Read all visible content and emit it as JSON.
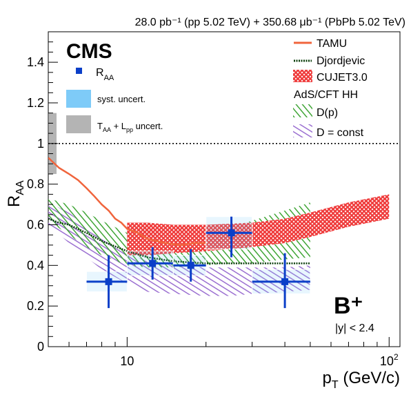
{
  "chart_data": {
    "type": "scatter",
    "header": "28.0 pb⁻¹ (pp 5.02 TeV) + 350.68 μb⁻¹ (PbPb 5.02 TeV)",
    "experiment": "CMS",
    "particle": "B⁺",
    "rapidity_cut": "|y| < 2.4",
    "xlabel": "pT (GeV/c)",
    "ylabel": "RAA",
    "xscale": "log",
    "xlim": [
      5,
      110
    ],
    "ylim": [
      0,
      1.55
    ],
    "x_tick_labels": [
      {
        "value": 10,
        "label": "10"
      },
      {
        "value": 100,
        "label": "10²"
      }
    ],
    "y_ticks": [
      0,
      0.2,
      0.4,
      0.6,
      0.8,
      1,
      1.2,
      1.4
    ],
    "y_tick_labels": [
      "0",
      "0.2",
      "0.4",
      "0.6",
      "0.8",
      "1",
      "1.2",
      "1.4"
    ],
    "reference_line": {
      "y": 1,
      "style": "dotted"
    },
    "legend_left": {
      "placement": "top-left",
      "entries": [
        {
          "key": "data",
          "label": "RAA",
          "color": "#0b3fc8"
        },
        {
          "key": "syst",
          "label": "syst. uncert.",
          "color": "#7ecbf8"
        },
        {
          "key": "taa",
          "label": "TAA + Lpp uncert.",
          "color": "#b4b4b4"
        }
      ]
    },
    "legend_right": {
      "placement": "top-right",
      "entries": [
        {
          "key": "tamu",
          "label": "TAMU",
          "color": "#f0643c"
        },
        {
          "key": "djordjevic",
          "label": "Djordjevic",
          "color": "#0a3d0a"
        },
        {
          "key": "cujet",
          "label": "CUJET3.0",
          "color": "#ef3b3b"
        },
        {
          "key": "ads_header",
          "label": "AdS/CFT HH"
        },
        {
          "key": "ads_dp",
          "label": "D(p)",
          "color": "#3fa535"
        },
        {
          "key": "ads_const",
          "label": "D = const",
          "color": "#9b6fd1"
        }
      ]
    },
    "global_uncertainty_band": {
      "label": "TAA + Lpp uncert.",
      "ylow": 0.85,
      "yhigh": 1.15,
      "color": "#b4b4b4"
    },
    "data_points": [
      {
        "x": 8.5,
        "xlow": 7,
        "xhigh": 10,
        "y": 0.32,
        "stat_low": 0.19,
        "stat_high": 0.45,
        "syst_low": 0.27,
        "syst_high": 0.37
      },
      {
        "x": 12.5,
        "xlow": 10,
        "xhigh": 15,
        "y": 0.41,
        "stat_low": 0.33,
        "stat_high": 0.49,
        "syst_low": 0.35,
        "syst_high": 0.47
      },
      {
        "x": 17.5,
        "xlow": 15,
        "xhigh": 20,
        "y": 0.4,
        "stat_low": 0.32,
        "stat_high": 0.48,
        "syst_low": 0.35,
        "syst_high": 0.45
      },
      {
        "x": 25,
        "xlow": 20,
        "xhigh": 30,
        "y": 0.56,
        "stat_low": 0.44,
        "stat_high": 0.64,
        "syst_low": 0.48,
        "syst_high": 0.64
      },
      {
        "x": 40,
        "xlow": 30,
        "xhigh": 50,
        "y": 0.32,
        "stat_low": 0.19,
        "stat_high": 0.46,
        "syst_low": 0.26,
        "syst_high": 0.38
      }
    ],
    "models": {
      "tamu": {
        "x": [
          5,
          5.5,
          6,
          6.5,
          7,
          7.5,
          8,
          8.5,
          9,
          9.5,
          10,
          11,
          12,
          14,
          16,
          18,
          20
        ],
        "y": [
          0.93,
          0.88,
          0.85,
          0.82,
          0.78,
          0.74,
          0.7,
          0.67,
          0.63,
          0.61,
          0.58,
          0.56,
          0.53,
          0.51,
          0.5,
          0.51,
          0.51
        ]
      },
      "djordjevic": {
        "x": [
          5,
          5.5,
          6,
          7,
          8,
          10,
          12,
          15,
          20,
          25,
          30,
          40,
          50
        ],
        "y": [
          0.63,
          0.61,
          0.6,
          0.56,
          0.52,
          0.47,
          0.44,
          0.42,
          0.41,
          0.41,
          0.41,
          0.41,
          0.41
        ]
      },
      "cujet": {
        "x": [
          10,
          12,
          15,
          20,
          30,
          40,
          50,
          70,
          100
        ],
        "ylow": [
          0.45,
          0.45,
          0.46,
          0.47,
          0.49,
          0.51,
          0.54,
          0.59,
          0.63
        ],
        "yhigh": [
          0.61,
          0.61,
          0.6,
          0.6,
          0.61,
          0.63,
          0.66,
          0.71,
          0.75
        ]
      },
      "ads_dp": {
        "x": [
          5,
          6,
          7,
          8,
          10,
          12,
          15,
          20,
          25,
          30,
          40,
          50
        ],
        "ylow": [
          0.62,
          0.55,
          0.49,
          0.45,
          0.4,
          0.39,
          0.39,
          0.4,
          0.41,
          0.41,
          0.43,
          0.44
        ],
        "yhigh": [
          0.73,
          0.7,
          0.66,
          0.62,
          0.56,
          0.55,
          0.55,
          0.56,
          0.59,
          0.62,
          0.67,
          0.71
        ]
      },
      "ads_const": {
        "x": [
          5,
          6,
          7,
          8,
          10,
          12,
          15,
          20,
          25,
          30,
          40,
          50
        ],
        "ylow": [
          0.6,
          0.51,
          0.44,
          0.38,
          0.31,
          0.27,
          0.26,
          0.25,
          0.25,
          0.26,
          0.27,
          0.28
        ],
        "yhigh": [
          0.71,
          0.66,
          0.59,
          0.54,
          0.46,
          0.42,
          0.4,
          0.39,
          0.39,
          0.39,
          0.39,
          0.4
        ]
      }
    },
    "colors": {
      "data": "#0b3fc8",
      "syst": "#7ecbf8",
      "syst_box_edge": "#ffffff",
      "tamu": "#f0643c",
      "djordjevic": "#0a3d0a",
      "cujet": "#ef3b3b",
      "ads_dp": "#3fa535",
      "ads_const": "#9b6fd1",
      "global": "#b4b4b4"
    }
  }
}
